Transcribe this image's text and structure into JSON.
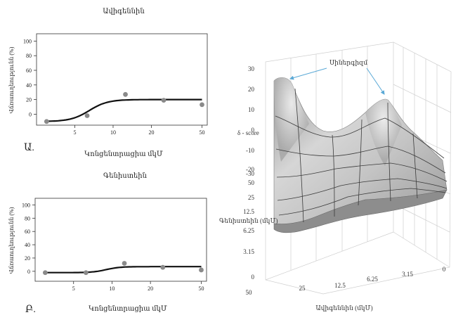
{
  "chart_data": [
    {
      "type": "line",
      "title": "Ավիգեննին",
      "panel_label": "Ա.",
      "xlabel": "Կոնցենտրացիա մկՄ",
      "ylabel": "Վճռաուղեությունն (%)",
      "x_ticks": [
        "5",
        "10",
        "20",
        "50"
      ],
      "y_ticks": [
        "0",
        "20",
        "40",
        "60",
        "80",
        "100"
      ],
      "ylim": [
        -5,
        105
      ],
      "points": [
        {
          "x": 3,
          "y": -10
        },
        {
          "x": 6.25,
          "y": -2
        },
        {
          "x": 12.5,
          "y": 27
        },
        {
          "x": 25,
          "y": 19
        },
        {
          "x": 50,
          "y": 13
        }
      ],
      "fit": {
        "bottom": -10,
        "top": 20,
        "ec50": 6.5,
        "hill": 6
      }
    },
    {
      "type": "line",
      "title": "Գենիստեին",
      "panel_label": "Բ.",
      "xlabel": "Կոնցենտրացիա մկՄ",
      "ylabel": "Վճռաուղեությունն (%)",
      "x_ticks": [
        "5",
        "10",
        "20",
        "50"
      ],
      "y_ticks": [
        "0",
        "20",
        "40",
        "60",
        "80",
        "100"
      ],
      "ylim": [
        -5,
        105
      ],
      "points": [
        {
          "x": 3,
          "y": -2
        },
        {
          "x": 6.25,
          "y": -2
        },
        {
          "x": 12.5,
          "y": 12
        },
        {
          "x": 25,
          "y": 6
        },
        {
          "x": 50,
          "y": 2
        }
      ],
      "fit": {
        "bottom": -2,
        "top": 7,
        "ec50": 9,
        "hill": 8
      }
    },
    {
      "type": "heatmap",
      "subtype": "3d-surface",
      "annotation": "Սիներգիզմ",
      "zlabel": "δ - score",
      "z_ticks": [
        "30",
        "20",
        "10",
        "0",
        "-10",
        "-20",
        "-30"
      ],
      "genistein_axis_label": "Գենիստեին (մկՄ)",
      "genistein_ticks": [
        "50",
        "25",
        "12.5",
        "6.25",
        "3.15",
        "0"
      ],
      "avigenin_axis_label": "Ավիգեննին (մկՄ)",
      "avigenin_ticks": [
        "50",
        "25",
        "12.5",
        "6.25",
        "3.15",
        "0"
      ]
    }
  ]
}
